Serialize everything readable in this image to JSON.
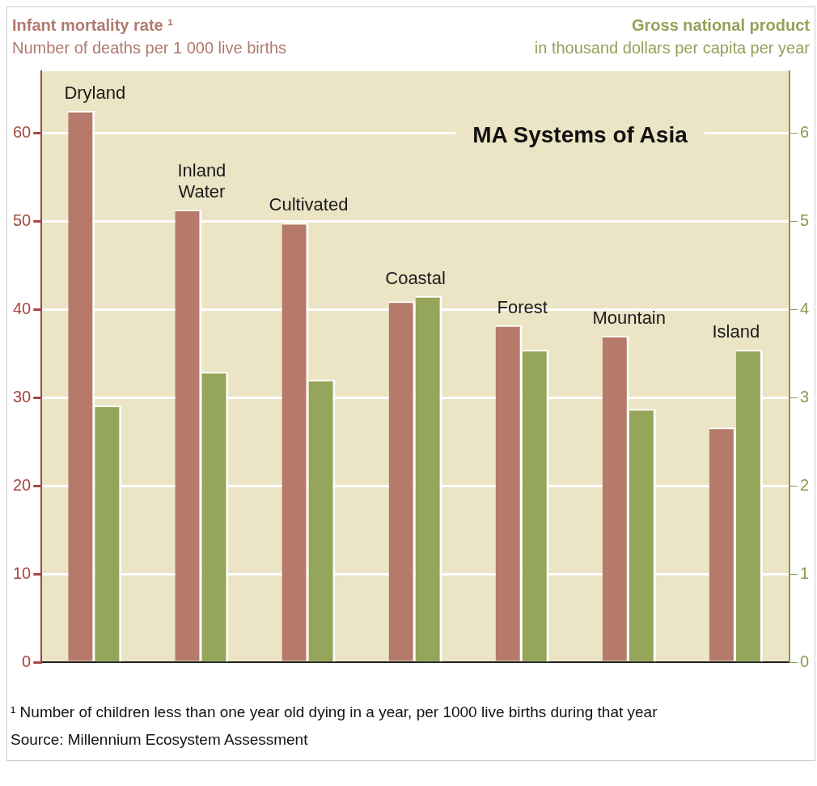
{
  "chart_data": {
    "type": "bar",
    "title": "MA Systems of Asia",
    "ylabel": "Infant mortality rate ¹\nNumber of deaths per 1 000 live births",
    "y2label": "Gross national product\nin thousand dollars per capita per year",
    "categories": [
      "Dryland",
      "Inland Water",
      "Cultivated",
      "Coastal",
      "Forest",
      "Mountain",
      "Island"
    ],
    "series": [
      {
        "color": "#b67a6a",
        "values": [
          62.5,
          51.3,
          49.8,
          40.9,
          38.2,
          37.0,
          26.6
        ]
      },
      {
        "color": "#95a55a",
        "axis": "y2",
        "values": [
          2.91,
          3.29,
          3.2,
          4.15,
          3.54,
          2.87,
          3.54
        ]
      }
    ],
    "ylim": [
      0,
      67
    ],
    "yticks": [
      0,
      10,
      20,
      30,
      40,
      50,
      60
    ],
    "y2lim": [
      0,
      6.7
    ],
    "y2ticks": [
      0,
      1,
      2,
      3,
      4,
      5,
      6
    ],
    "grid": "y",
    "legend": false,
    "annotations": [
      "¹ Number of children less than one year old dying in a year, per 1000 live births during that year",
      "Source: Millennium Ecosystem Assessment"
    ]
  }
}
